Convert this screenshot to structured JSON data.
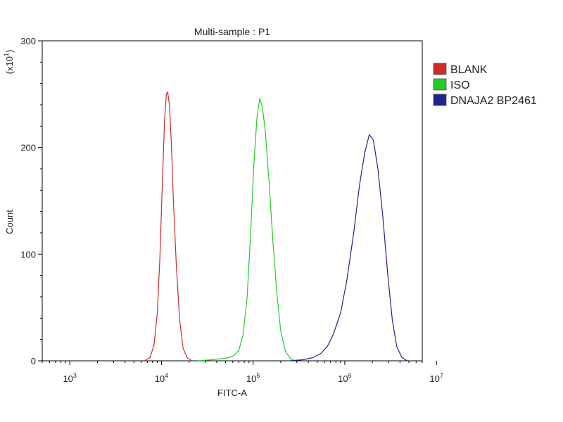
{
  "chart_data": {
    "type": "line",
    "title": "Multi-sample : P1",
    "xlabel": "FITC-A",
    "ylabel": "Count",
    "y_multiplier": "(x10",
    "y_multiplier_exp": "1",
    "y_multiplier_close": ")",
    "x_scale": "log",
    "xlim": [
      500,
      7000000
    ],
    "ylim": [
      0,
      300
    ],
    "x_ticks": [
      {
        "base": "10",
        "exp": "3",
        "value": 1000
      },
      {
        "base": "10",
        "exp": "4",
        "value": 10000
      },
      {
        "base": "10",
        "exp": "5",
        "value": 100000
      },
      {
        "base": "10",
        "exp": "6",
        "value": 1000000
      },
      {
        "base": "10",
        "exp": "7",
        "value": 10000000
      }
    ],
    "y_ticks": [
      {
        "label": "0",
        "value": 0
      },
      {
        "label": "100",
        "value": 100
      },
      {
        "label": "200",
        "value": 200
      },
      {
        "label": "300",
        "value": 300
      }
    ],
    "grid": false,
    "legend_position": "right",
    "series": [
      {
        "name": "BLANK",
        "color": "#cc2b2b",
        "x": [
          6500,
          7500,
          8300,
          9000,
          9600,
          10200,
          10800,
          11300,
          11700,
          12200,
          12800,
          13500,
          14500,
          15700,
          17200,
          19000,
          21500
        ],
        "y": [
          0,
          3,
          15,
          45,
          95,
          165,
          225,
          250,
          252,
          240,
          205,
          150,
          90,
          40,
          12,
          3,
          0
        ]
      },
      {
        "name": "ISO",
        "color": "#22cc22",
        "x": [
          25000,
          35000,
          45000,
          55000,
          62000,
          70000,
          78000,
          86000,
          94000,
          102000,
          110000,
          118000,
          126000,
          136000,
          150000,
          165000,
          182000,
          200000,
          225000,
          255000,
          290000
        ],
        "y": [
          0,
          1,
          2,
          3,
          5,
          10,
          25,
          60,
          120,
          185,
          228,
          246,
          238,
          215,
          165,
          110,
          62,
          28,
          9,
          2,
          0
        ]
      },
      {
        "name": "DNAJA2 BP2461",
        "color": "#22228c",
        "x": [
          250000,
          350000,
          450000,
          550000,
          650000,
          750000,
          900000,
          1050000,
          1250000,
          1450000,
          1650000,
          1850000,
          2050000,
          2300000,
          2600000,
          2950000,
          3300000,
          3700000,
          4200000,
          4800000
        ],
        "y": [
          0,
          1,
          3,
          7,
          14,
          25,
          45,
          75,
          120,
          165,
          195,
          212,
          207,
          180,
          135,
          80,
          38,
          13,
          3,
          0
        ]
      }
    ]
  }
}
